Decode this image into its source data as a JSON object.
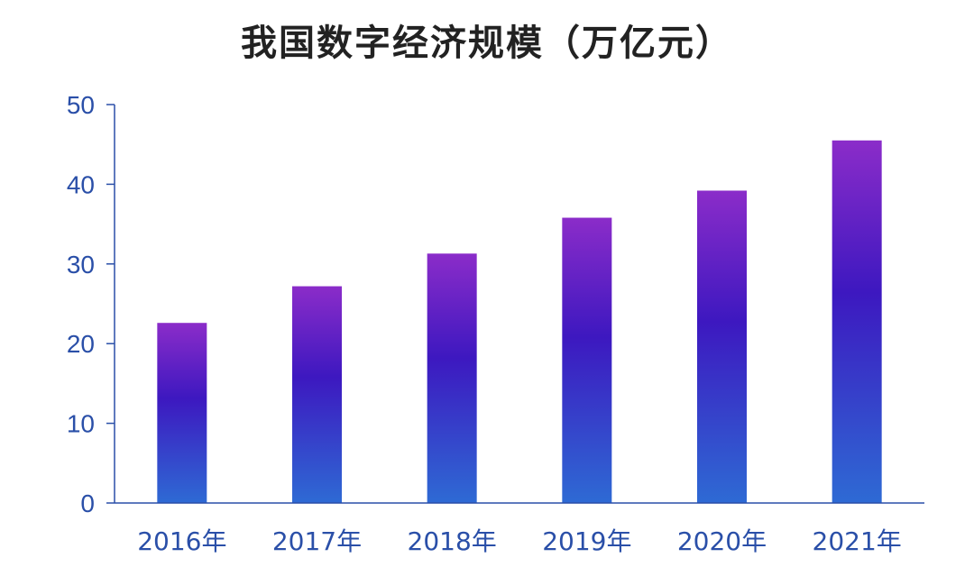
{
  "chart_data": {
    "type": "bar",
    "title": "我国数字经济规模（万亿元）",
    "categories": [
      "2016年",
      "2017年",
      "2018年",
      "2019年",
      "2020年",
      "2021年"
    ],
    "values": [
      22.6,
      27.2,
      31.3,
      35.8,
      39.2,
      45.5
    ],
    "ylim": [
      0,
      50
    ],
    "yticks": [
      0,
      10,
      20,
      30,
      40,
      50
    ],
    "xlabel": "",
    "ylabel": "",
    "grid": false,
    "legend": "none",
    "colors": {
      "bar_top": "#8b2cc9",
      "bar_mid": "#3d18c0",
      "bar_bottom": "#2e6ad4",
      "axis": "#2a4fa8",
      "tick_text": "#2a4fa8",
      "title_text": "#222222"
    }
  }
}
